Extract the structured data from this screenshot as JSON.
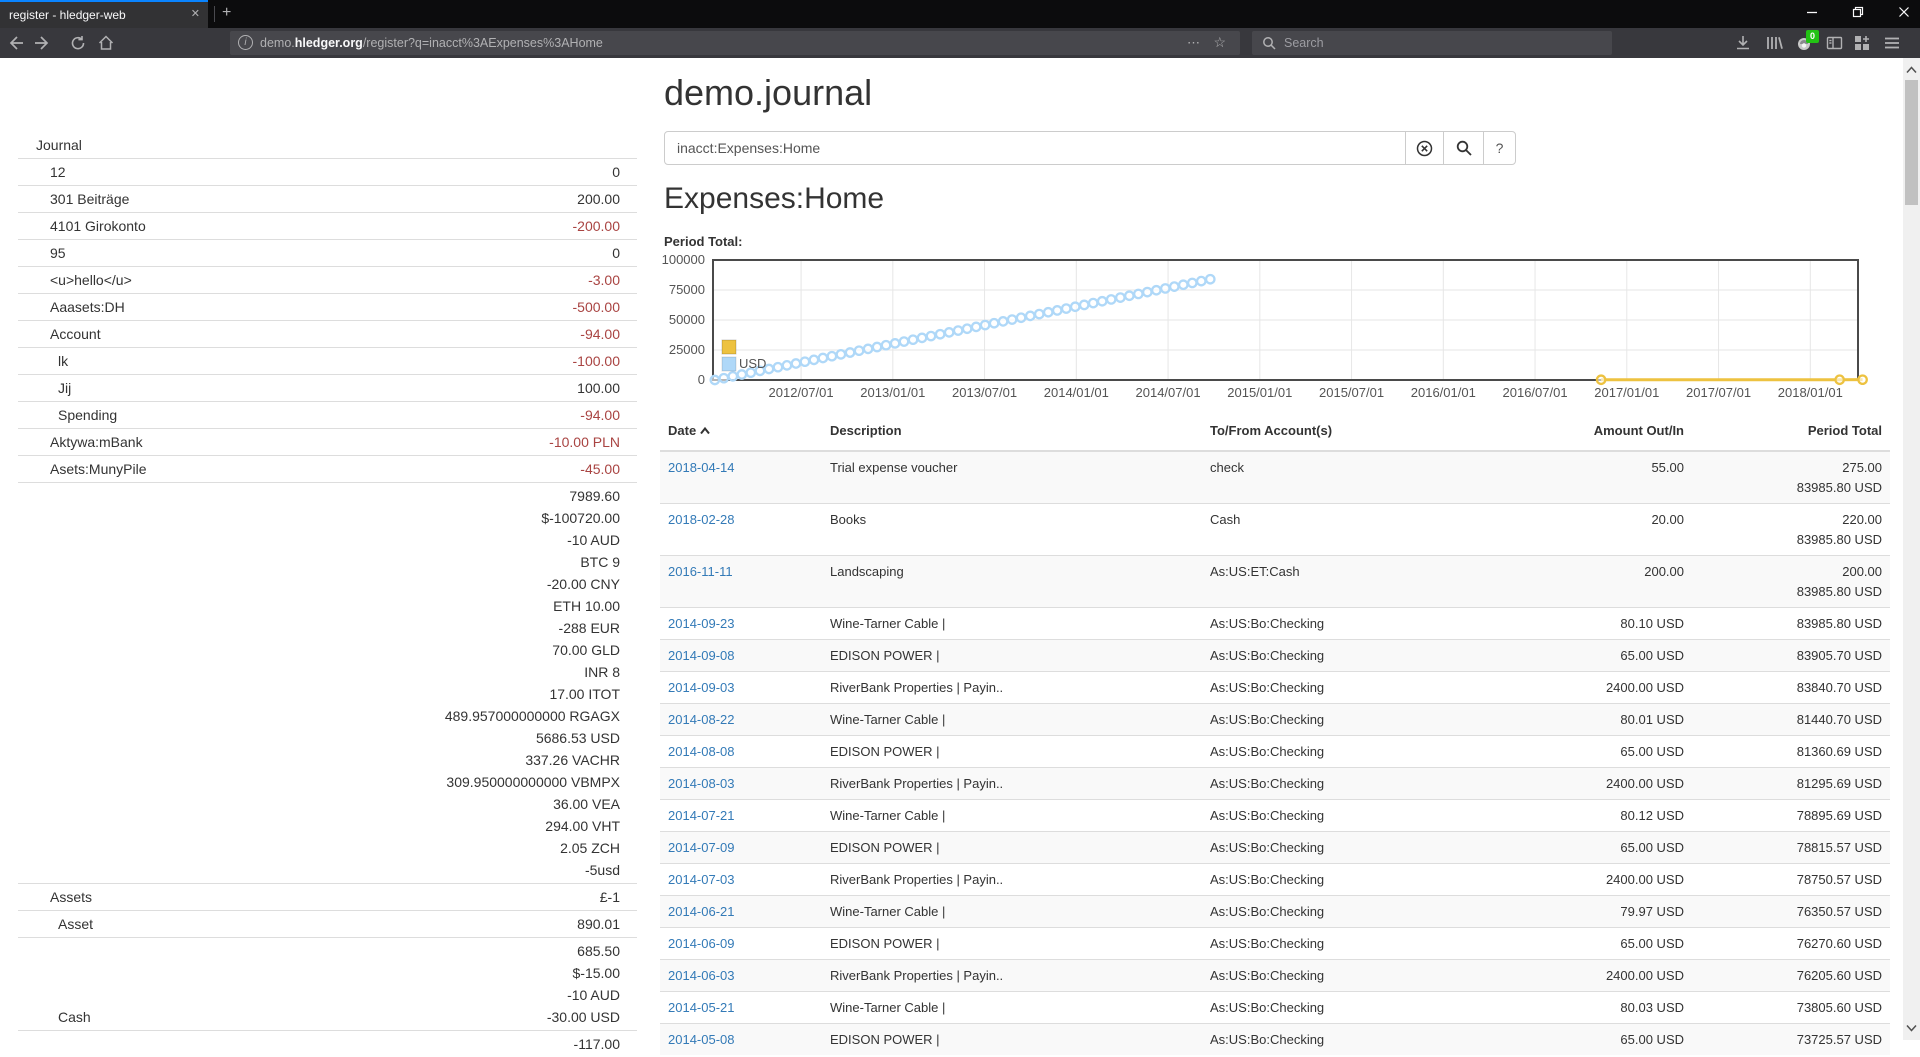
{
  "browser": {
    "tab_title": "register - hledger-web",
    "tab_close_icon": "✕",
    "new_tab_icon": "+",
    "window_controls": {
      "minimize": "—",
      "restore": "❐",
      "close": "✕"
    },
    "url": {
      "prefix": "demo.",
      "domain": "hledger.org",
      "path": "/register?q=inacct%3AExpenses%3AHome"
    },
    "url_dots_icon": "⋯",
    "url_star_icon": "☆",
    "search_placeholder": "Search",
    "extension_badge": "0"
  },
  "page": {
    "title": "demo.journal",
    "search": {
      "value": "inacct:Expenses:Home",
      "help_label": "?"
    },
    "account_heading": "Expenses:Home",
    "chart_label": "Period Total:",
    "sidebar": {
      "rows": [
        {
          "name": "Journal",
          "indent": 0,
          "amounts": []
        },
        {
          "name": "12",
          "indent": 1,
          "amounts": [
            {
              "t": "0"
            }
          ]
        },
        {
          "name": "301 Beiträge",
          "indent": 1,
          "amounts": [
            {
              "t": "200.00"
            }
          ]
        },
        {
          "name": "4101 Girokonto",
          "indent": 1,
          "amounts": [
            {
              "t": "-200.00",
              "red": true
            }
          ]
        },
        {
          "name": "95",
          "indent": 1,
          "amounts": [
            {
              "t": "0"
            }
          ]
        },
        {
          "name": "<u>hello</u>",
          "indent": 1,
          "amounts": [
            {
              "t": "-3.00",
              "red": true
            }
          ]
        },
        {
          "name": "Aaasets:DH",
          "indent": 1,
          "amounts": [
            {
              "t": "-500.00",
              "red": true
            }
          ]
        },
        {
          "name": "Account",
          "indent": 1,
          "amounts": [
            {
              "t": "-94.00",
              "red": true
            }
          ]
        },
        {
          "name": "lk",
          "indent": 2,
          "amounts": [
            {
              "t": "-100.00",
              "red": true
            }
          ]
        },
        {
          "name": "Jij",
          "indent": 2,
          "amounts": [
            {
              "t": "100.00"
            }
          ]
        },
        {
          "name": "Spending",
          "indent": 2,
          "amounts": [
            {
              "t": "-94.00",
              "red": true
            }
          ]
        },
        {
          "name": "Aktywa:mBank",
          "indent": 1,
          "amounts": [
            {
              "t": "-10.00 PLN",
              "red": true
            }
          ]
        },
        {
          "name": "Asets:MunyPile",
          "indent": 1,
          "amounts": [
            {
              "t": "-45.00",
              "red": true
            }
          ]
        },
        {
          "name": "",
          "indent": 1,
          "amounts": [
            {
              "t": "7989.60"
            },
            {
              "t": "$-100720.00"
            },
            {
              "t": "-10 AUD"
            },
            {
              "t": "BTC 9"
            },
            {
              "t": "-20.00 CNY"
            },
            {
              "t": "ETH 10.00"
            },
            {
              "t": "-288 EUR"
            },
            {
              "t": "70.00 GLD"
            },
            {
              "t": "INR 8"
            },
            {
              "t": "17.00 ITOT"
            },
            {
              "t": "489.957000000000 RGAGX"
            },
            {
              "t": "5686.53 USD"
            },
            {
              "t": "337.26 VACHR"
            },
            {
              "t": "309.950000000000 VBMPX"
            },
            {
              "t": "36.00 VEA"
            },
            {
              "t": "294.00 VHT"
            },
            {
              "t": "2.05 ZCH"
            },
            {
              "t": "-5usd"
            }
          ]
        },
        {
          "name": "Assets",
          "indent": 1,
          "amounts": [
            {
              "t": "£-1"
            }
          ]
        },
        {
          "name": "Asset",
          "indent": 2,
          "amounts": [
            {
              "t": "890.01"
            }
          ]
        },
        {
          "name": "Cash",
          "indent": 2,
          "amounts": [
            {
              "t": "685.50"
            },
            {
              "t": "$-15.00"
            },
            {
              "t": "-10 AUD"
            },
            {
              "t": "-30.00 USD"
            }
          ]
        },
        {
          "name": "",
          "indent": 1,
          "amounts": [
            {
              "t": "-117.00"
            }
          ]
        }
      ]
    },
    "register": {
      "columns": [
        "Date",
        "Description",
        "To/From Account(s)",
        "Amount Out/In",
        "Period Total"
      ],
      "rows": [
        {
          "date": "2018-04-14",
          "description": "Trial expense voucher",
          "account": "check",
          "amount": "55.00",
          "totals": [
            "275.00",
            "83985.80 USD"
          ]
        },
        {
          "date": "2018-02-28",
          "description": "Books",
          "account": "Cash",
          "amount": "20.00",
          "totals": [
            "220.00",
            "83985.80 USD"
          ]
        },
        {
          "date": "2016-11-11",
          "description": "Landscaping",
          "account": "As:US:ET:Cash",
          "amount": "200.00",
          "totals": [
            "200.00",
            "83985.80 USD"
          ]
        },
        {
          "date": "2014-09-23",
          "description": "Wine-Tarner Cable |",
          "account": "As:US:Bo:Checking",
          "amount": "80.10 USD",
          "totals": [
            "83985.80 USD"
          ]
        },
        {
          "date": "2014-09-08",
          "description": "EDISON POWER |",
          "account": "As:US:Bo:Checking",
          "amount": "65.00 USD",
          "totals": [
            "83905.70 USD"
          ]
        },
        {
          "date": "2014-09-03",
          "description": "RiverBank Properties | Payin..",
          "account": "As:US:Bo:Checking",
          "amount": "2400.00 USD",
          "totals": [
            "83840.70 USD"
          ]
        },
        {
          "date": "2014-08-22",
          "description": "Wine-Tarner Cable |",
          "account": "As:US:Bo:Checking",
          "amount": "80.01 USD",
          "totals": [
            "81440.70 USD"
          ]
        },
        {
          "date": "2014-08-08",
          "description": "EDISON POWER |",
          "account": "As:US:Bo:Checking",
          "amount": "65.00 USD",
          "totals": [
            "81360.69 USD"
          ]
        },
        {
          "date": "2014-08-03",
          "description": "RiverBank Properties | Payin..",
          "account": "As:US:Bo:Checking",
          "amount": "2400.00 USD",
          "totals": [
            "81295.69 USD"
          ]
        },
        {
          "date": "2014-07-21",
          "description": "Wine-Tarner Cable |",
          "account": "As:US:Bo:Checking",
          "amount": "80.12 USD",
          "totals": [
            "78895.69 USD"
          ]
        },
        {
          "date": "2014-07-09",
          "description": "EDISON POWER |",
          "account": "As:US:Bo:Checking",
          "amount": "65.00 USD",
          "totals": [
            "78815.57 USD"
          ]
        },
        {
          "date": "2014-07-03",
          "description": "RiverBank Properties | Payin..",
          "account": "As:US:Bo:Checking",
          "amount": "2400.00 USD",
          "totals": [
            "78750.57 USD"
          ]
        },
        {
          "date": "2014-06-21",
          "description": "Wine-Tarner Cable |",
          "account": "As:US:Bo:Checking",
          "amount": "79.97 USD",
          "totals": [
            "76350.57 USD"
          ]
        },
        {
          "date": "2014-06-09",
          "description": "EDISON POWER |",
          "account": "As:US:Bo:Checking",
          "amount": "65.00 USD",
          "totals": [
            "76270.60 USD"
          ]
        },
        {
          "date": "2014-06-03",
          "description": "RiverBank Properties | Payin..",
          "account": "As:US:Bo:Checking",
          "amount": "2400.00 USD",
          "totals": [
            "76205.60 USD"
          ]
        },
        {
          "date": "2014-05-21",
          "description": "Wine-Tarner Cable |",
          "account": "As:US:Bo:Checking",
          "amount": "80.03 USD",
          "totals": [
            "73805.60 USD"
          ]
        },
        {
          "date": "2014-05-08",
          "description": "EDISON POWER |",
          "account": "As:US:Bo:Checking",
          "amount": "65.00 USD",
          "totals": [
            "73725.57 USD"
          ]
        }
      ]
    }
  },
  "chart_data": {
    "type": "scatter",
    "title": "Period Total:",
    "x_axis": {
      "range_yearfrac": [
        2012.02,
        2018.26
      ],
      "ticks": [
        {
          "t": 2012.5,
          "label": "2012/07/01"
        },
        {
          "t": 2013.0,
          "label": "2013/01/01"
        },
        {
          "t": 2013.5,
          "label": "2013/07/01"
        },
        {
          "t": 2014.0,
          "label": "2014/01/01"
        },
        {
          "t": 2014.5,
          "label": "2014/07/01"
        },
        {
          "t": 2015.0,
          "label": "2015/01/01"
        },
        {
          "t": 2015.5,
          "label": "2015/07/01"
        },
        {
          "t": 2016.0,
          "label": "2016/01/01"
        },
        {
          "t": 2016.5,
          "label": "2016/07/01"
        },
        {
          "t": 2017.0,
          "label": "2017/01/01"
        },
        {
          "t": 2017.5,
          "label": "2017/07/01"
        },
        {
          "t": 2018.0,
          "label": "2018/01/01"
        }
      ]
    },
    "y_axis": {
      "range": [
        0,
        100000
      ],
      "ticks": [
        0,
        25000,
        50000,
        75000,
        100000
      ]
    },
    "legend_position": "bottom-left-inside",
    "series": [
      {
        "name": "",
        "color": "#edc240",
        "style": "line+points",
        "points": [
          [
            2016.86,
            200
          ],
          [
            2018.16,
            220
          ],
          [
            2018.285,
            275
          ]
        ]
      },
      {
        "name": "USD",
        "color": "#afd8f8",
        "style": "points",
        "points": [
          [
            2012.03,
            0
          ],
          [
            2012.079,
            1526
          ],
          [
            2012.128,
            3052
          ],
          [
            2012.177,
            4578
          ],
          [
            2012.226,
            6105
          ],
          [
            2012.276,
            7631
          ],
          [
            2012.325,
            9157
          ],
          [
            2012.374,
            10683
          ],
          [
            2012.423,
            12209
          ],
          [
            2012.472,
            13735
          ],
          [
            2012.521,
            15262
          ],
          [
            2012.57,
            16788
          ],
          [
            2012.619,
            18314
          ],
          [
            2012.668,
            19840
          ],
          [
            2012.717,
            21366
          ],
          [
            2012.767,
            22892
          ],
          [
            2012.816,
            24419
          ],
          [
            2012.865,
            25945
          ],
          [
            2012.914,
            27471
          ],
          [
            2012.963,
            28997
          ],
          [
            2013.012,
            30523
          ],
          [
            2013.061,
            32049
          ],
          [
            2013.11,
            33576
          ],
          [
            2013.159,
            35102
          ],
          [
            2013.208,
            36628
          ],
          [
            2013.258,
            38154
          ],
          [
            2013.307,
            39680
          ],
          [
            2013.356,
            41206
          ],
          [
            2013.405,
            42733
          ],
          [
            2013.454,
            44259
          ],
          [
            2013.503,
            45785
          ],
          [
            2013.552,
            47311
          ],
          [
            2013.601,
            48837
          ],
          [
            2013.65,
            50363
          ],
          [
            2013.699,
            51890
          ],
          [
            2013.749,
            53416
          ],
          [
            2013.798,
            54942
          ],
          [
            2013.847,
            56468
          ],
          [
            2013.896,
            57994
          ],
          [
            2013.945,
            59520
          ],
          [
            2013.994,
            61047
          ],
          [
            2014.043,
            62573
          ],
          [
            2014.092,
            64099
          ],
          [
            2014.141,
            65625
          ],
          [
            2014.19,
            67151
          ],
          [
            2014.24,
            68677
          ],
          [
            2014.289,
            70204
          ],
          [
            2014.338,
            71730
          ],
          [
            2014.387,
            73256
          ],
          [
            2014.436,
            74782
          ],
          [
            2014.485,
            76308
          ],
          [
            2014.534,
            77834
          ],
          [
            2014.583,
            79361
          ],
          [
            2014.632,
            80887
          ],
          [
            2014.681,
            82413
          ],
          [
            2014.73,
            83986
          ]
        ]
      }
    ]
  }
}
